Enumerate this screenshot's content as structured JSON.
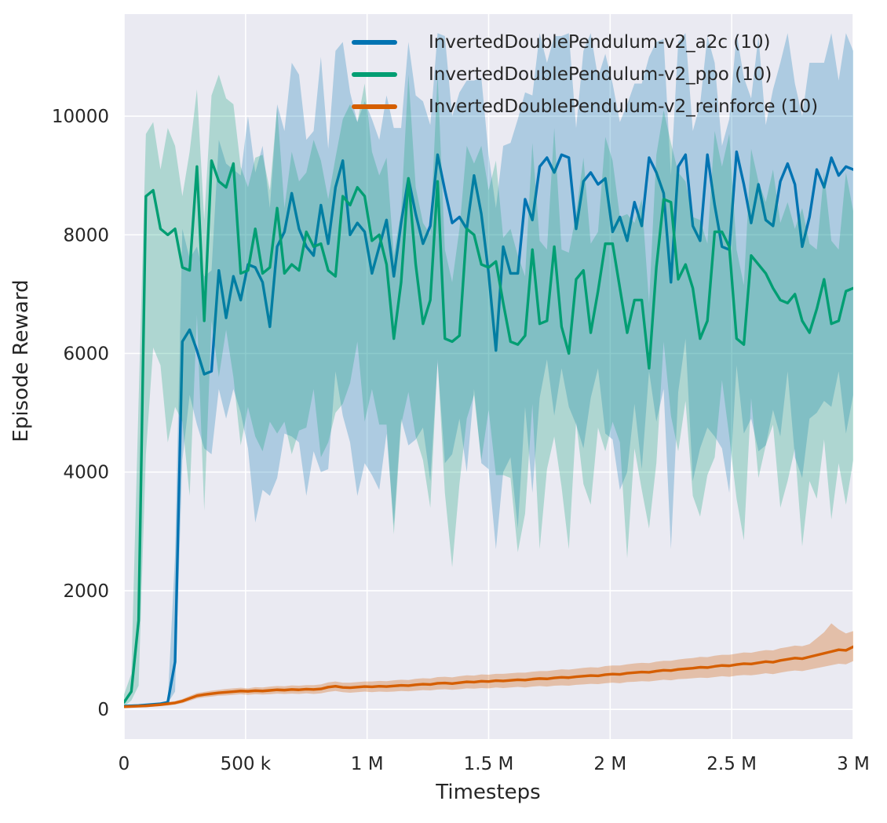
{
  "figure": {
    "background": "#ffffff",
    "plot_background": "#eaeaf2",
    "grid_color": "#ffffff",
    "text_color": "#262626"
  },
  "chart_data": {
    "type": "line",
    "title": "",
    "xlabel": "Timesteps",
    "ylabel": "Episode Reward",
    "grid": true,
    "legend_position": "upper center",
    "xlim": [
      0,
      3000000
    ],
    "ylim": [
      -500,
      11720
    ],
    "x_start": 0,
    "x_step": 30000,
    "n_points": 101,
    "x_ticks": {
      "values": [
        0,
        500000,
        1000000,
        1500000,
        2000000,
        2500000,
        3000000
      ],
      "labels": [
        "0",
        "500 k",
        "1 M",
        "1.5 M",
        "2 M",
        "2.5 M",
        "3 M"
      ]
    },
    "y_ticks": {
      "values": [
        0,
        2000,
        4000,
        6000,
        8000,
        10000
      ],
      "labels": [
        "0",
        "2000",
        "4000",
        "6000",
        "8000",
        "10000"
      ]
    },
    "series": [
      {
        "name": "InvertedDoublePendulum-v2_a2c (10)",
        "algo": "a2c",
        "color": "#0173b2",
        "band_opacity": 0.26,
        "mean": [
          55,
          60,
          65,
          75,
          85,
          95,
          120,
          800,
          6200,
          6400,
          6050,
          5650,
          5700,
          7400,
          6600,
          7300,
          6900,
          7500,
          7450,
          7200,
          6450,
          7800,
          8050,
          8700,
          8100,
          7800,
          7650,
          8500,
          7850,
          8800,
          9250,
          8000,
          8200,
          8050,
          7350,
          7800,
          8250,
          7300,
          8200,
          8950,
          8350,
          7850,
          8150,
          9350,
          8750,
          8200,
          8300,
          8100,
          9000,
          8350,
          7350,
          6050,
          7800,
          7350,
          7350,
          8600,
          8250,
          9150,
          9300,
          9050,
          9350,
          9300,
          8100,
          8900,
          9050,
          8850,
          8950,
          8050,
          8300,
          7900,
          8550,
          8150,
          9300,
          9050,
          8700,
          7200,
          9150,
          9350,
          8150,
          7900,
          9350,
          8500,
          7800,
          7750,
          9400,
          8850,
          8200,
          8850,
          8250,
          8150,
          8900,
          9200,
          8850,
          7800,
          8300,
          9100,
          8800,
          9300,
          9000,
          9150,
          9100
        ],
        "lower": [
          40,
          45,
          50,
          60,
          70,
          80,
          105,
          300,
          4200,
          5300,
          4800,
          4400,
          4300,
          5400,
          4900,
          5400,
          5000,
          4400,
          3150,
          3700,
          3600,
          3900,
          4650,
          4600,
          4500,
          3600,
          4350,
          4000,
          4050,
          5700,
          4950,
          4500,
          3600,
          4150,
          3950,
          3700,
          4650,
          3100,
          4900,
          4450,
          4550,
          4750,
          3850,
          5850,
          4150,
          4300,
          4900,
          4000,
          5400,
          4150,
          4050,
          2700,
          4000,
          4250,
          3050,
          5100,
          3650,
          5250,
          5900,
          4950,
          5750,
          5100,
          4800,
          4400,
          5250,
          5750,
          4650,
          4550,
          3700,
          4000,
          5150,
          4050,
          5700,
          4850,
          5400,
          2700,
          5350,
          6250,
          3850,
          4400,
          4750,
          4600,
          4400,
          3650,
          5800,
          4650,
          4900,
          4350,
          4450,
          5050,
          4600,
          5700,
          4250,
          3900,
          4900,
          5000,
          5200,
          5100,
          5700,
          4650,
          5300
        ],
        "upper": [
          80,
          85,
          90,
          100,
          110,
          120,
          145,
          2600,
          8100,
          7600,
          7800,
          7300,
          7400,
          9600,
          9200,
          9100,
          9000,
          10000,
          9050,
          9500,
          8450,
          10200,
          9750,
          10900,
          10700,
          9600,
          9750,
          11000,
          9450,
          11100,
          11250,
          10400,
          9900,
          10250,
          9950,
          9600,
          10350,
          9800,
          9800,
          11250,
          10350,
          10250,
          9850,
          11400,
          11350,
          10000,
          10400,
          10600,
          10600,
          10650,
          9350,
          8450,
          9500,
          9550,
          9950,
          10400,
          10350,
          11400,
          10900,
          11350,
          11350,
          11400,
          9800,
          11100,
          11400,
          10650,
          11050,
          10550,
          9900,
          10200,
          10550,
          10550,
          11000,
          11250,
          11300,
          9000,
          11250,
          11400,
          9750,
          10200,
          11350,
          10900,
          9500,
          9950,
          11400,
          10650,
          10300,
          11350,
          9850,
          10450,
          10900,
          11400,
          10550,
          10000,
          10900,
          10900,
          10900,
          11400,
          10600,
          11400,
          11100
        ]
      },
      {
        "name": "InvertedDoublePendulum-v2_ppo (10)",
        "algo": "ppo",
        "color": "#029e73",
        "band_opacity": 0.26,
        "mean": [
          120,
          300,
          1500,
          8650,
          8750,
          8100,
          8000,
          8100,
          7450,
          7400,
          9150,
          6550,
          9250,
          8900,
          8800,
          9200,
          7350,
          7400,
          8100,
          7350,
          7450,
          8450,
          7350,
          7500,
          7400,
          8050,
          7800,
          7850,
          7400,
          7300,
          8650,
          8500,
          8800,
          8650,
          7900,
          8000,
          7500,
          6250,
          7200,
          8950,
          7500,
          6500,
          6900,
          8900,
          6250,
          6200,
          6300,
          8100,
          8000,
          7500,
          7450,
          7550,
          6850,
          6200,
          6150,
          6300,
          7750,
          6500,
          6550,
          7800,
          6450,
          6000,
          7250,
          7400,
          6350,
          7050,
          7850,
          7850,
          7100,
          6350,
          6900,
          6900,
          5750,
          7450,
          8600,
          8550,
          7250,
          7500,
          7100,
          6250,
          6550,
          8050,
          8050,
          7800,
          6250,
          6150,
          7650,
          7500,
          7350,
          7100,
          6900,
          6850,
          7000,
          6550,
          6350,
          6750,
          7250,
          6500,
          6550,
          7050,
          7100
        ],
        "lower": [
          50,
          150,
          400,
          4300,
          6100,
          5800,
          4500,
          5100,
          4850,
          3600,
          6650,
          3350,
          6550,
          5600,
          6400,
          5600,
          4450,
          5100,
          4600,
          4350,
          4850,
          4650,
          4850,
          4300,
          4700,
          4750,
          5400,
          4250,
          4500,
          5000,
          5150,
          5500,
          6200,
          4850,
          5400,
          4800,
          4800,
          2950,
          4800,
          5350,
          4600,
          4200,
          3400,
          5900,
          3650,
          2400,
          3800,
          4900,
          5300,
          4200,
          5050,
          3950,
          3950,
          3900,
          2650,
          3300,
          5150,
          2700,
          4050,
          4600,
          3750,
          2700,
          4850,
          3800,
          3450,
          4750,
          4350,
          4850,
          4500,
          2550,
          4400,
          3700,
          3050,
          4150,
          6200,
          4950,
          4350,
          5200,
          3600,
          3250,
          3950,
          4250,
          5550,
          4600,
          3550,
          2850,
          5250,
          3900,
          4450,
          4800,
          3400,
          3850,
          4400,
          2750,
          3850,
          3550,
          4550,
          3200,
          4150,
          3450,
          4200
        ],
        "upper": [
          250,
          600,
          5200,
          9700,
          9900,
          9100,
          9800,
          9500,
          8650,
          9400,
          10450,
          8250,
          10350,
          10700,
          10300,
          10200,
          9150,
          8800,
          9300,
          9350,
          8750,
          10150,
          8450,
          9400,
          8900,
          9050,
          9600,
          9250,
          8600,
          9300,
          9950,
          10200,
          9900,
          10550,
          9400,
          9000,
          9300,
          7650,
          8400,
          10700,
          8800,
          8200,
          8000,
          10700,
          7750,
          7200,
          8100,
          9500,
          9200,
          9500,
          8750,
          9250,
          7950,
          8100,
          7650,
          7300,
          9550,
          7900,
          7750,
          9800,
          7750,
          7700,
          8350,
          9300,
          7850,
          8050,
          9650,
          9250,
          8300,
          8350,
          8200,
          8600,
          6850,
          9350,
          10100,
          9550,
          9050,
          8900,
          8300,
          8250,
          7850,
          9750,
          9150,
          9700,
          7750,
          7150,
          9450,
          8900,
          8550,
          9100,
          8200,
          8550,
          8100,
          8450,
          7850,
          7750,
          9050,
          7900,
          7750,
          9050,
          8400
        ]
      },
      {
        "name": "InvertedDoublePendulum-v2_reinforce (10)",
        "algo": "reinforce",
        "color": "#d55e00",
        "band_opacity": 0.3,
        "mean": [
          45,
          50,
          55,
          60,
          70,
          80,
          95,
          110,
          140,
          185,
          230,
          250,
          265,
          280,
          290,
          300,
          310,
          305,
          315,
          310,
          320,
          330,
          325,
          335,
          330,
          340,
          335,
          345,
          375,
          390,
          370,
          365,
          375,
          385,
          380,
          390,
          385,
          395,
          405,
          400,
          415,
          425,
          420,
          440,
          445,
          435,
          450,
          465,
          460,
          475,
          470,
          485,
          480,
          490,
          500,
          495,
          510,
          520,
          515,
          530,
          540,
          535,
          550,
          560,
          570,
          565,
          585,
          595,
          590,
          610,
          620,
          630,
          625,
          645,
          660,
          655,
          675,
          685,
          695,
          710,
          705,
          725,
          740,
          735,
          755,
          770,
          765,
          785,
          805,
          795,
          825,
          845,
          865,
          855,
          885,
          915,
          945,
          975,
          1005,
          995,
          1055
        ],
        "lower": [
          25,
          30,
          35,
          35,
          45,
          55,
          65,
          80,
          105,
          145,
          185,
          205,
          215,
          230,
          235,
          245,
          255,
          245,
          255,
          250,
          255,
          265,
          260,
          265,
          260,
          270,
          260,
          270,
          295,
          310,
          290,
          280,
          290,
          300,
          290,
          300,
          295,
          300,
          310,
          305,
          315,
          325,
          320,
          335,
          340,
          330,
          340,
          355,
          350,
          360,
          355,
          370,
          360,
          370,
          380,
          370,
          385,
          395,
          385,
          400,
          405,
          400,
          415,
          420,
          430,
          425,
          440,
          450,
          440,
          460,
          465,
          475,
          470,
          485,
          500,
          490,
          510,
          515,
          525,
          535,
          530,
          545,
          560,
          550,
          570,
          580,
          575,
          590,
          610,
          595,
          620,
          640,
          655,
          645,
          670,
          695,
          720,
          745,
          770,
          760,
          815
        ],
        "upper": [
          65,
          70,
          75,
          85,
          95,
          105,
          125,
          140,
          175,
          225,
          275,
          295,
          315,
          330,
          345,
          355,
          365,
          355,
          375,
          370,
          385,
          395,
          390,
          405,
          400,
          410,
          410,
          420,
          455,
          470,
          450,
          450,
          460,
          470,
          470,
          480,
          475,
          490,
          500,
          495,
          515,
          525,
          520,
          545,
          550,
          540,
          560,
          575,
          570,
          590,
          585,
          600,
          600,
          610,
          620,
          620,
          635,
          645,
          645,
          660,
          675,
          670,
          685,
          700,
          710,
          705,
          730,
          740,
          740,
          760,
          775,
          785,
          780,
          805,
          820,
          820,
          840,
          855,
          865,
          885,
          880,
          905,
          920,
          920,
          940,
          960,
          955,
          980,
          1000,
          995,
          1030,
          1050,
          1075,
          1065,
          1100,
          1200,
          1300,
          1450,
          1350,
          1280,
          1320
        ]
      }
    ]
  }
}
